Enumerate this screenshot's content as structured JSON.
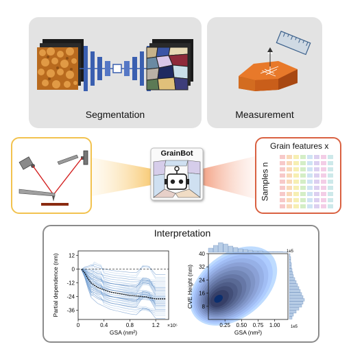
{
  "panels": {
    "segmentation": {
      "label": "Segmentation"
    },
    "measurement": {
      "label": "Measurement"
    },
    "grainbot": {
      "label": "GrainBot"
    },
    "features": {
      "title": "Grain features x",
      "rows_label": "Samples n"
    },
    "interpretation": {
      "title": "Interpretation"
    }
  },
  "colors": {
    "panel_gray": "#e3e3e3",
    "afm_border": "#f2c24e",
    "features_border": "#d96040",
    "unet_blue": "#3a5fb0",
    "accent_orange": "#e8792a"
  },
  "chart_data": [
    {
      "type": "line",
      "title": "",
      "xlabel": "GSA (nm²)",
      "ylabel": "Partial dependence (nm)",
      "x_ticks": [
        "0",
        "0.4",
        "0.8",
        "1.2"
      ],
      "x_multiplier": "×10⁵",
      "y_ticks": [
        "12",
        "0",
        "-12",
        "-24",
        "-36"
      ],
      "xlim": [
        0,
        1.4
      ],
      "ylim": [
        -44,
        16
      ],
      "series": [
        {
          "x": [
            0.05,
            0.1,
            0.15,
            0.2,
            0.25,
            0.3,
            0.35,
            0.4,
            0.5,
            0.6,
            0.7,
            0.8,
            0.9,
            1.0,
            1.05,
            1.1,
            1.2,
            1.3,
            1.35
          ],
          "y": [
            0,
            -3,
            -8,
            -12,
            -14,
            -16,
            -17,
            -18,
            -20,
            -21,
            -22,
            -23,
            -23.5,
            -24,
            -24.2,
            -25,
            -26,
            -26,
            -26
          ]
        }
      ]
    },
    {
      "type": "heatmap",
      "title": "",
      "xlabel": "GSA (nm²)",
      "ylabel": "CVE Height (nm)",
      "x_ticks": [
        "0.25",
        "0.50",
        "0.75",
        "1.00"
      ],
      "x_multiplier": "1e5",
      "y_ticks": [
        "40",
        "32",
        "24",
        "16",
        "8"
      ],
      "top_hist_multiplier": "1e5",
      "xlim": [
        0,
        1.2
      ],
      "ylim": [
        0,
        40
      ],
      "peak": {
        "x": 0.15,
        "y": 12
      }
    }
  ]
}
